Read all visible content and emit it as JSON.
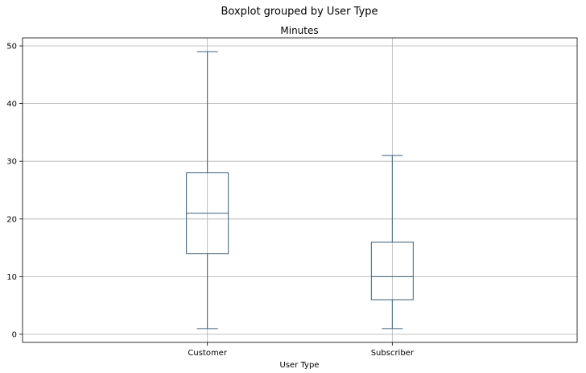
{
  "chart_data": {
    "type": "boxplot",
    "suptitle": "Boxplot grouped by User Type",
    "title": "Minutes",
    "xlabel": "User Type",
    "ylabel": "",
    "categories": [
      "Customer",
      "Subscriber"
    ],
    "boxes": [
      {
        "category": "Customer",
        "whisker_low": 1,
        "q1": 14,
        "median": 21,
        "q3": 28,
        "whisker_high": 49
      },
      {
        "category": "Subscriber",
        "whisker_low": 1,
        "q1": 6,
        "median": 10,
        "q3": 16,
        "whisker_high": 31
      }
    ],
    "yticks": [
      0,
      10,
      20,
      30,
      40,
      50
    ],
    "ylim": [
      -1.4,
      51.4
    ],
    "grid": true,
    "box_color": "#3a5f7d",
    "grid_color": "#b0b0b0"
  }
}
